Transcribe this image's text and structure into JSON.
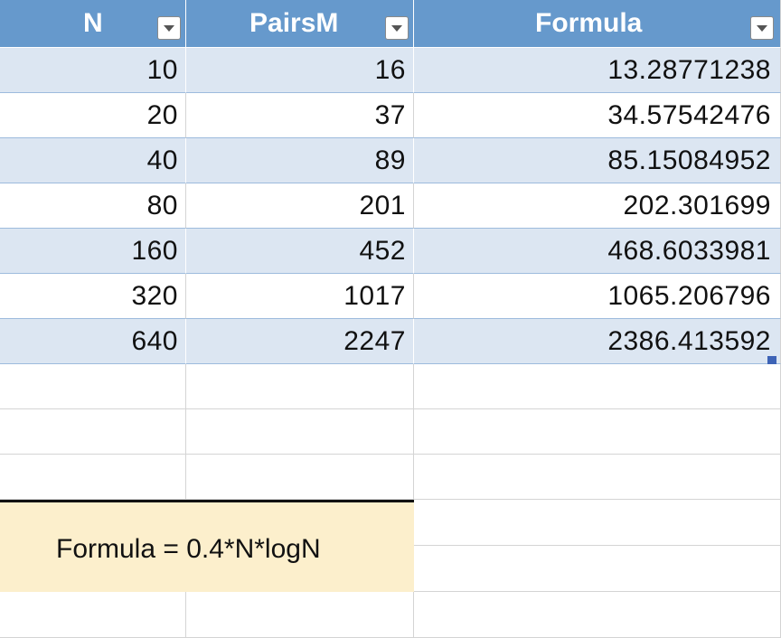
{
  "table": {
    "headers": [
      "N",
      "PairsM",
      "Formula"
    ],
    "rows": [
      [
        "10",
        "16",
        "13.28771238"
      ],
      [
        "20",
        "37",
        "34.57542476"
      ],
      [
        "40",
        "89",
        "85.15084952"
      ],
      [
        "80",
        "201",
        "202.301699"
      ],
      [
        "160",
        "452",
        "468.6033981"
      ],
      [
        "320",
        "1017",
        "1065.206796"
      ],
      [
        "640",
        "2247",
        "2386.413592"
      ]
    ]
  },
  "note": {
    "text": "Formula = 0.4*N*logN"
  },
  "colors": {
    "header_bg": "#6699cc",
    "band_bg": "#dce6f2",
    "note_bg": "#fcefcc",
    "header_text": "#ffffff"
  }
}
